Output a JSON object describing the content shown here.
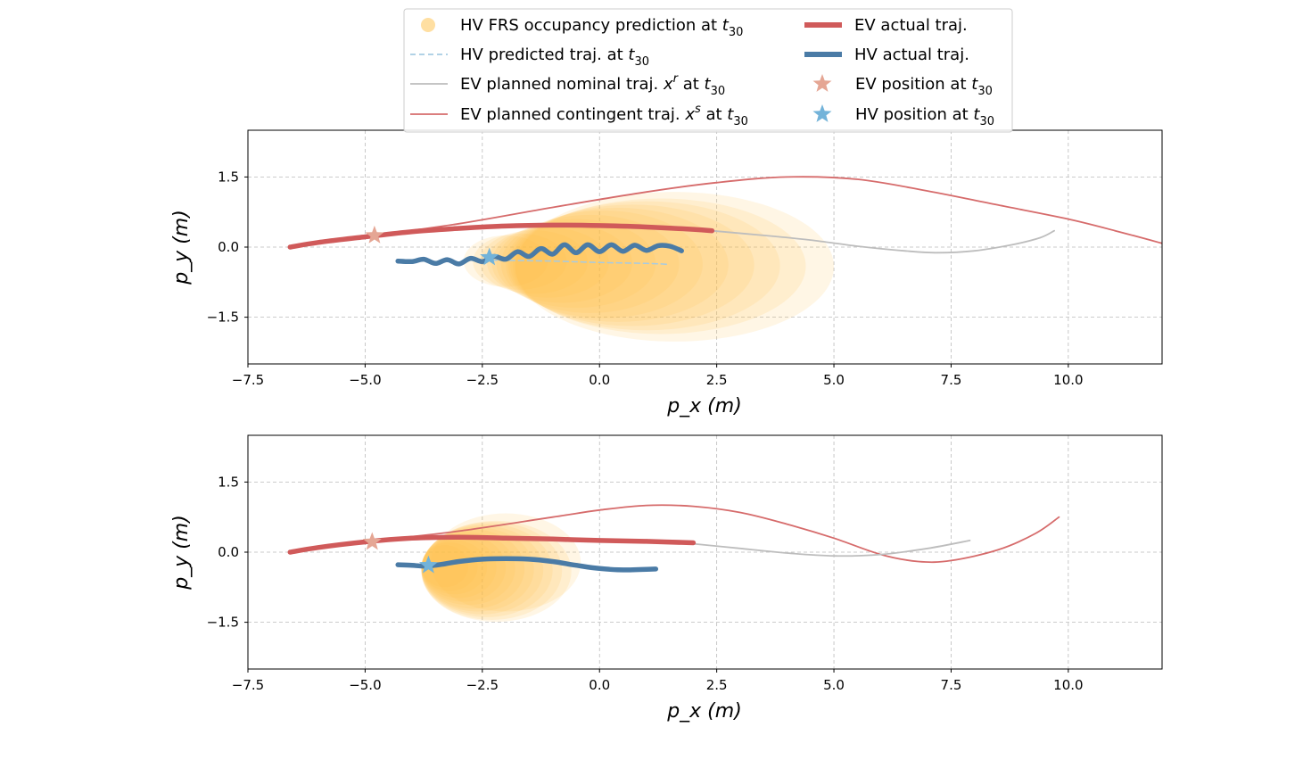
{
  "legend": {
    "items": [
      {
        "key": "frs",
        "label": "HV FRS occupancy prediction at ",
        "math": "t",
        "sub": "30",
        "color": "#ffd27a"
      },
      {
        "key": "hv_pred",
        "label": "HV predicted traj. at ",
        "math": "t",
        "sub": "30",
        "color": "#a6cbe3"
      },
      {
        "key": "ev_nom",
        "label": "EV planned nominal traj. ",
        "math": "x",
        "sup": "r",
        "suffix": " at ",
        "math2": "t",
        "sub": "30",
        "color": "#bdbdbd"
      },
      {
        "key": "ev_cont",
        "label": "EV planned contingent traj. ",
        "math": "x",
        "sup": "s",
        "suffix": " at ",
        "math2": "t",
        "sub": "30",
        "color": "#d66b6b"
      },
      {
        "key": "ev_act",
        "label": "EV actual traj.",
        "color": "#d05a5a"
      },
      {
        "key": "hv_act",
        "label": "HV actual traj.",
        "color": "#4a7ba6"
      },
      {
        "key": "ev_pos",
        "label": "EV position at ",
        "math": "t",
        "sub": "30",
        "color": "#e5a694"
      },
      {
        "key": "hv_pos",
        "label": "HV position at ",
        "math": "t",
        "sub": "30",
        "color": "#73b3d9"
      }
    ]
  },
  "chart_data": [
    {
      "type": "line",
      "xlabel": "p_x (m)",
      "ylabel": "p_y (m)",
      "xlim": [
        -7.5,
        12.0
      ],
      "ylim": [
        -2.5,
        2.5
      ],
      "xticks": [
        "−7.5",
        "−5.0",
        "−2.5",
        "0.0",
        "2.5",
        "5.0",
        "7.5",
        "10.0"
      ],
      "xtick_values": [
        -7.5,
        -5.0,
        -2.5,
        0.0,
        2.5,
        5.0,
        7.5,
        10.0
      ],
      "yticks": [
        "1.5",
        "0.0",
        "−1.5"
      ],
      "ytick_values": [
        1.5,
        0.0,
        -1.5
      ],
      "grid": true,
      "series": [
        {
          "name": "EV planned contingent traj.",
          "key": "ev_cont",
          "x": [
            -4.8,
            -3.0,
            -1.0,
            1.0,
            2.5,
            4.0,
            5.5,
            7.0,
            8.5,
            10.0,
            11.0,
            12.0
          ],
          "y": [
            0.25,
            0.5,
            0.85,
            1.18,
            1.38,
            1.5,
            1.45,
            1.2,
            0.9,
            0.6,
            0.35,
            0.08
          ]
        },
        {
          "name": "EV planned nominal traj.",
          "key": "ev_nom",
          "x": [
            2.4,
            3.5,
            4.5,
            5.5,
            6.5,
            7.2,
            8.0,
            8.8,
            9.4,
            9.7
          ],
          "y": [
            0.35,
            0.25,
            0.15,
            0.02,
            -0.08,
            -0.12,
            -0.08,
            0.05,
            0.2,
            0.35
          ]
        },
        {
          "name": "EV actual traj.",
          "key": "ev_act",
          "x": [
            -6.6,
            -6.0,
            -5.0,
            -4.0,
            -3.0,
            -2.0,
            -1.0,
            0.0,
            1.0,
            2.0,
            2.4
          ],
          "y": [
            0.0,
            0.1,
            0.22,
            0.33,
            0.4,
            0.45,
            0.47,
            0.46,
            0.43,
            0.38,
            0.35
          ]
        },
        {
          "name": "HV predicted traj.",
          "key": "hv_pred",
          "x": [
            -2.3,
            -1.0,
            0.0,
            1.0,
            1.5
          ],
          "y": [
            -0.28,
            -0.3,
            -0.33,
            -0.35,
            -0.37
          ]
        },
        {
          "name": "HV actual traj.",
          "key": "hv_act",
          "x": [
            -4.3,
            -4.0,
            -3.75,
            -3.5,
            -3.25,
            -3.0,
            -2.75,
            -2.5,
            -2.25,
            -2.0,
            -1.75,
            -1.5,
            -1.25,
            -1.0,
            -0.75,
            -0.5,
            -0.25,
            0.0,
            0.25,
            0.5,
            0.75,
            1.0,
            1.25,
            1.5,
            1.75
          ],
          "y": [
            -0.3,
            -0.31,
            -0.26,
            -0.35,
            -0.27,
            -0.36,
            -0.24,
            -0.31,
            -0.2,
            -0.26,
            -0.1,
            -0.2,
            -0.03,
            -0.15,
            0.05,
            -0.12,
            0.05,
            -0.1,
            0.05,
            -0.09,
            0.04,
            -0.07,
            0.03,
            0.02,
            -0.08
          ]
        }
      ],
      "ev_position": {
        "x": -4.8,
        "y": 0.25
      },
      "hv_position": {
        "x": -2.35,
        "y": -0.22
      },
      "frs_ellipses": {
        "center_x": [
          -2.0,
          -1.7,
          -1.4,
          -1.1,
          -0.8,
          -0.5,
          -0.2,
          0.1,
          0.4,
          0.7,
          1.0,
          1.3,
          1.6
        ],
        "center_y": [
          -0.3,
          -0.31,
          -0.32,
          -0.33,
          -0.34,
          -0.35,
          -0.36,
          -0.37,
          -0.38,
          -0.39,
          -0.4,
          -0.41,
          -0.42
        ],
        "semi_x": [
          0.9,
          1.0,
          1.15,
          1.3,
          1.5,
          1.7,
          1.9,
          2.1,
          2.35,
          2.6,
          2.85,
          3.1,
          3.4
        ],
        "semi_y": [
          0.55,
          0.6,
          0.68,
          0.75,
          0.85,
          0.95,
          1.05,
          1.15,
          1.22,
          1.3,
          1.38,
          1.45,
          1.6
        ]
      }
    },
    {
      "type": "line",
      "xlabel": "p_x (m)",
      "ylabel": "p_y (m)",
      "xlim": [
        -7.5,
        12.0
      ],
      "ylim": [
        -2.5,
        2.5
      ],
      "xticks": [
        "−7.5",
        "−5.0",
        "−2.5",
        "0.0",
        "2.5",
        "5.0",
        "7.5",
        "10.0"
      ],
      "xtick_values": [
        -7.5,
        -5.0,
        -2.5,
        0.0,
        2.5,
        5.0,
        7.5,
        10.0
      ],
      "yticks": [
        "1.5",
        "0.0",
        "−1.5"
      ],
      "ytick_values": [
        1.5,
        0.0,
        -1.5
      ],
      "grid": true,
      "series": [
        {
          "name": "EV planned contingent traj.",
          "key": "ev_cont",
          "x": [
            -4.8,
            -3.0,
            -1.0,
            0.0,
            1.0,
            2.0,
            3.0,
            4.0,
            5.0,
            6.0,
            6.8,
            7.5,
            8.5,
            9.3,
            9.8
          ],
          "y": [
            0.25,
            0.45,
            0.75,
            0.9,
            1.0,
            0.98,
            0.85,
            0.6,
            0.3,
            -0.05,
            -0.2,
            -0.18,
            0.05,
            0.4,
            0.75
          ]
        },
        {
          "name": "EV planned nominal traj.",
          "key": "ev_nom",
          "x": [
            2.0,
            3.0,
            4.0,
            5.0,
            6.0,
            7.0,
            7.9
          ],
          "y": [
            0.18,
            0.08,
            -0.02,
            -0.08,
            -0.05,
            0.08,
            0.25
          ]
        },
        {
          "name": "EV actual traj.",
          "key": "ev_act",
          "x": [
            -6.6,
            -6.0,
            -5.0,
            -4.0,
            -3.0,
            -2.0,
            -1.0,
            0.0,
            1.0,
            2.0
          ],
          "y": [
            0.0,
            0.1,
            0.22,
            0.3,
            0.32,
            0.3,
            0.28,
            0.25,
            0.23,
            0.2
          ]
        },
        {
          "name": "HV actual traj.",
          "key": "hv_act",
          "x": [
            -4.3,
            -4.0,
            -3.7,
            -3.3,
            -3.0,
            -2.5,
            -2.0,
            -1.5,
            -1.0,
            -0.5,
            0.0,
            0.5,
            1.2
          ],
          "y": [
            -0.27,
            -0.28,
            -0.3,
            -0.25,
            -0.2,
            -0.15,
            -0.14,
            -0.15,
            -0.2,
            -0.28,
            -0.35,
            -0.38,
            -0.36
          ]
        }
      ],
      "ev_position": {
        "x": -4.85,
        "y": 0.22
      },
      "hv_position": {
        "x": -3.65,
        "y": -0.28
      },
      "frs_ellipses": {
        "center_x": [
          -3.3,
          -3.2,
          -3.1,
          -3.0,
          -2.9,
          -2.8,
          -2.7,
          -2.6,
          -2.5,
          -2.4,
          -2.3,
          -2.2,
          -2.0
        ],
        "center_y": [
          -0.3,
          -0.31,
          -0.32,
          -0.33,
          -0.34,
          -0.35,
          -0.36,
          -0.37,
          -0.38,
          -0.39,
          -0.4,
          -0.41,
          -0.22
        ],
        "semi_x": [
          0.5,
          0.6,
          0.7,
          0.8,
          0.9,
          1.0,
          1.1,
          1.2,
          1.3,
          1.4,
          1.5,
          1.6,
          1.6
        ],
        "semi_y": [
          0.45,
          0.52,
          0.58,
          0.65,
          0.72,
          0.78,
          0.85,
          0.9,
          0.95,
          1.0,
          1.05,
          1.08,
          1.05
        ]
      }
    }
  ]
}
